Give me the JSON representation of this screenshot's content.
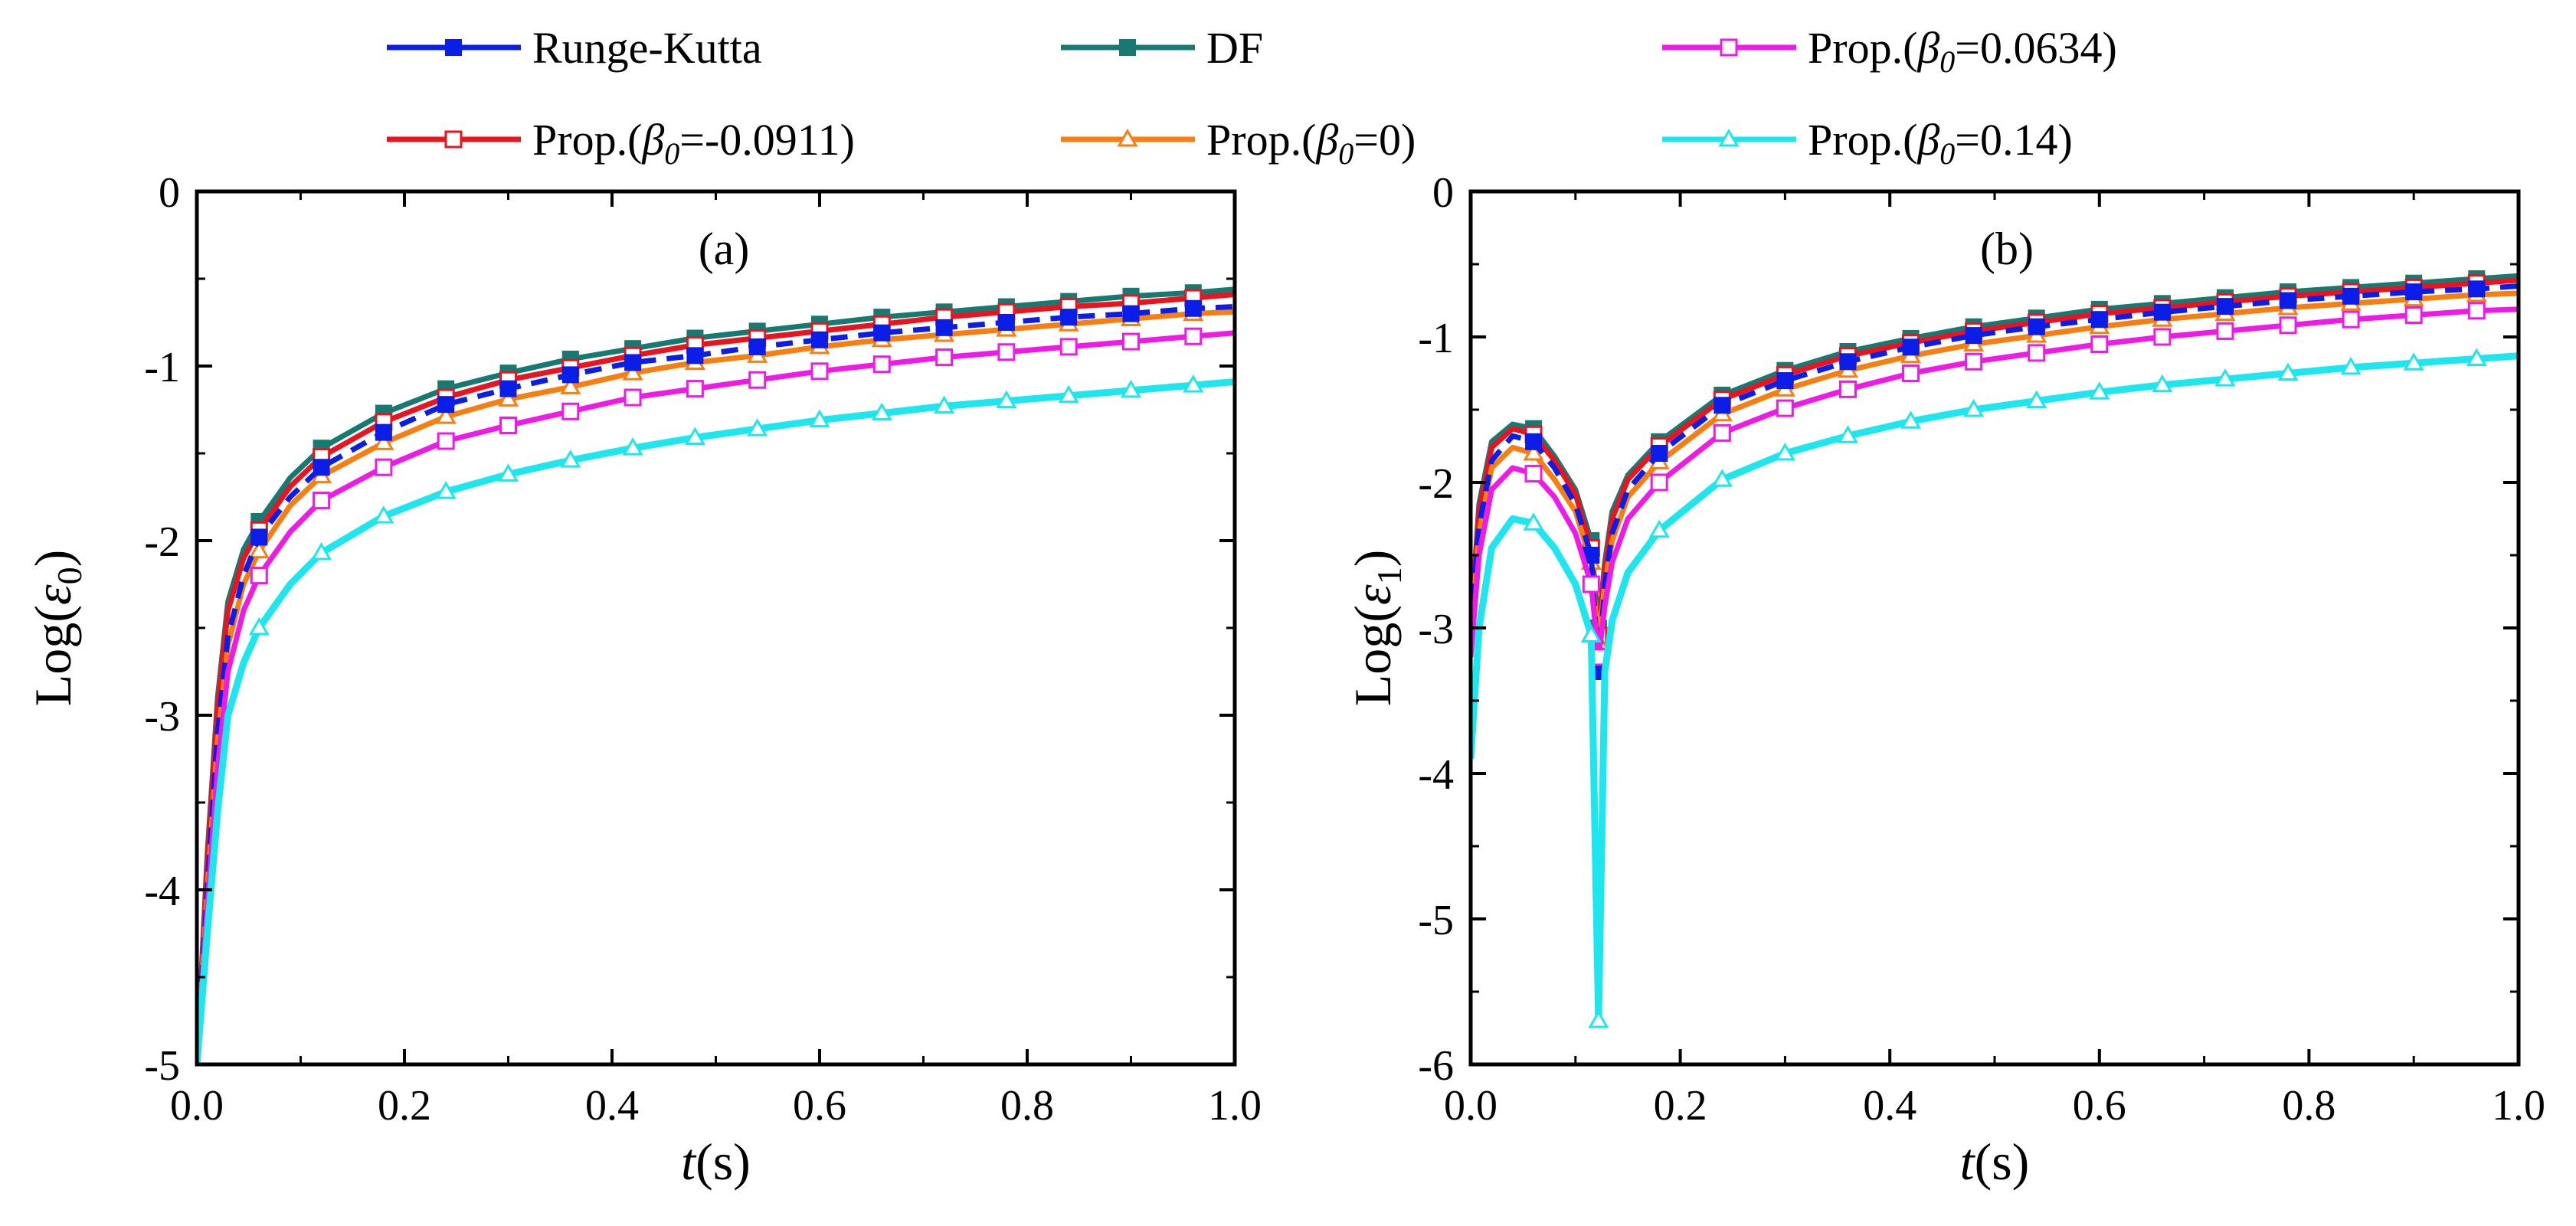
{
  "legend": [
    {
      "text": "Runge-Kutta",
      "color": "#0b1ee8",
      "marker": "square-filled"
    },
    {
      "text": "DF",
      "color": "#167a72",
      "marker": "square-filled"
    },
    {
      "text": "Prop.(β0=0.0634)",
      "prefix": "Prop.(",
      "beta": "β",
      "sub": "0",
      "suffix": "=0.0634)",
      "color": "#ee1be6",
      "marker": "square-open"
    },
    {
      "text": "Prop.(β0=-0.0911)",
      "prefix": "Prop.(",
      "beta": "β",
      "sub": "0",
      "suffix": "=-0.0911)",
      "color": "#e8141e",
      "marker": "square-open"
    },
    {
      "text": "Prop.(β0=0)",
      "prefix": "Prop.(",
      "beta": "β",
      "sub": "0",
      "suffix": "=0)",
      "color": "#f77e10",
      "marker": "triangle-open"
    },
    {
      "text": "Prop.(β0=0.14)",
      "prefix": "Prop.(",
      "beta": "β",
      "sub": "0",
      "suffix": "=0.14)",
      "color": "#1ee6ee",
      "marker": "triangle-open"
    }
  ],
  "chart_data": [
    {
      "type": "line",
      "panel_label": "(a)",
      "xlabel": "t(s)",
      "ylabel": "Log(ε0)",
      "xlim": [
        0,
        1
      ],
      "ylim": [
        -5,
        0
      ],
      "xticks": [
        "0.0",
        "0.2",
        "0.4",
        "0.6",
        "0.8",
        "1.0"
      ],
      "yticks": [
        "0",
        "-1",
        "-2",
        "-3",
        "-4",
        "-5"
      ],
      "x": [
        0.0,
        0.01,
        0.02,
        0.03,
        0.045,
        0.06,
        0.09,
        0.12,
        0.18,
        0.24,
        0.3,
        0.36,
        0.42,
        0.48,
        0.54,
        0.6,
        0.66,
        0.72,
        0.78,
        0.84,
        0.9,
        0.96,
        1.0
      ],
      "series": [
        {
          "name": "Runge-Kutta",
          "values": [
            -5.0,
            -4.0,
            -3.1,
            -2.55,
            -2.2,
            -1.98,
            -1.75,
            -1.58,
            -1.38,
            -1.22,
            -1.13,
            -1.05,
            -0.98,
            -0.94,
            -0.89,
            -0.85,
            -0.81,
            -0.78,
            -0.75,
            -0.72,
            -0.7,
            -0.67,
            -0.66
          ]
        },
        {
          "name": "DF",
          "values": [
            -5.0,
            -3.8,
            -2.9,
            -2.35,
            -2.05,
            -1.89,
            -1.64,
            -1.47,
            -1.27,
            -1.13,
            -1.04,
            -0.96,
            -0.9,
            -0.84,
            -0.8,
            -0.76,
            -0.72,
            -0.69,
            -0.66,
            -0.63,
            -0.6,
            -0.58,
            -0.56
          ]
        },
        {
          "name": "Prop.(β0=0.0634)",
          "values": [
            -5.0,
            -4.1,
            -3.3,
            -2.75,
            -2.4,
            -2.2,
            -1.95,
            -1.77,
            -1.58,
            -1.43,
            -1.34,
            -1.26,
            -1.18,
            -1.13,
            -1.08,
            -1.03,
            -0.99,
            -0.95,
            -0.92,
            -0.89,
            -0.86,
            -0.83,
            -0.81
          ]
        },
        {
          "name": "Prop.(β0=-0.0911)",
          "values": [
            -5.0,
            -3.85,
            -2.95,
            -2.4,
            -2.1,
            -1.94,
            -1.69,
            -1.52,
            -1.32,
            -1.18,
            -1.08,
            -1.01,
            -0.94,
            -0.88,
            -0.84,
            -0.8,
            -0.76,
            -0.72,
            -0.69,
            -0.66,
            -0.64,
            -0.61,
            -0.59
          ]
        },
        {
          "name": "Prop.(β0=0)",
          "values": [
            -5.0,
            -4.0,
            -3.15,
            -2.6,
            -2.25,
            -2.06,
            -1.8,
            -1.63,
            -1.44,
            -1.29,
            -1.19,
            -1.12,
            -1.04,
            -0.98,
            -0.94,
            -0.89,
            -0.85,
            -0.82,
            -0.79,
            -0.76,
            -0.73,
            -0.7,
            -0.69
          ]
        },
        {
          "name": "Prop.(β0=0.14)",
          "values": [
            -5.0,
            -4.25,
            -3.55,
            -3.0,
            -2.7,
            -2.5,
            -2.25,
            -2.07,
            -1.86,
            -1.72,
            -1.62,
            -1.54,
            -1.47,
            -1.41,
            -1.36,
            -1.31,
            -1.27,
            -1.23,
            -1.2,
            -1.17,
            -1.14,
            -1.11,
            -1.09
          ]
        }
      ]
    },
    {
      "type": "line",
      "panel_label": "(b)",
      "xlabel": "t(s)",
      "ylabel": "Log(ε1)",
      "xlim": [
        0,
        1
      ],
      "ylim": [
        -6,
        0
      ],
      "xticks": [
        "0.0",
        "0.2",
        "0.4",
        "0.6",
        "0.8",
        "1.0"
      ],
      "yticks": [
        "0",
        "-1",
        "-2",
        "-3",
        "-4",
        "-5",
        "-6"
      ],
      "x": [
        0.0,
        0.008,
        0.02,
        0.04,
        0.06,
        0.08,
        0.1,
        0.115,
        0.122,
        0.128,
        0.135,
        0.15,
        0.18,
        0.24,
        0.3,
        0.36,
        0.42,
        0.48,
        0.54,
        0.6,
        0.66,
        0.72,
        0.78,
        0.84,
        0.9,
        0.96,
        1.0
      ],
      "series": [
        {
          "name": "Runge-Kutta",
          "values": [
            -3.0,
            -2.3,
            -1.85,
            -1.68,
            -1.72,
            -1.9,
            -2.15,
            -2.5,
            -3.3,
            -2.7,
            -2.35,
            -2.05,
            -1.8,
            -1.47,
            -1.3,
            -1.17,
            -1.07,
            -0.99,
            -0.93,
            -0.88,
            -0.83,
            -0.79,
            -0.75,
            -0.72,
            -0.69,
            -0.67,
            -0.65
          ]
        },
        {
          "name": "DF",
          "values": [
            -3.0,
            -2.15,
            -1.72,
            -1.6,
            -1.63,
            -1.82,
            -2.05,
            -2.4,
            -3.0,
            -2.55,
            -2.2,
            -1.95,
            -1.72,
            -1.4,
            -1.23,
            -1.1,
            -1.01,
            -0.93,
            -0.87,
            -0.81,
            -0.77,
            -0.73,
            -0.69,
            -0.66,
            -0.63,
            -0.6,
            -0.58
          ]
        },
        {
          "name": "Prop.(β0=0.0634)",
          "values": [
            -3.2,
            -2.5,
            -2.05,
            -1.9,
            -1.94,
            -2.1,
            -2.35,
            -2.7,
            -3.2,
            -2.85,
            -2.55,
            -2.25,
            -2.0,
            -1.66,
            -1.49,
            -1.36,
            -1.25,
            -1.17,
            -1.11,
            -1.05,
            -1.0,
            -0.96,
            -0.92,
            -0.88,
            -0.85,
            -0.82,
            -0.81
          ]
        },
        {
          "name": "Prop.(β0=-0.0911)",
          "values": [
            -3.0,
            -2.2,
            -1.76,
            -1.63,
            -1.67,
            -1.85,
            -2.08,
            -2.45,
            -3.05,
            -2.6,
            -2.25,
            -1.98,
            -1.75,
            -1.43,
            -1.26,
            -1.13,
            -1.04,
            -0.96,
            -0.9,
            -0.84,
            -0.8,
            -0.76,
            -0.72,
            -0.69,
            -0.66,
            -0.63,
            -0.61
          ]
        },
        {
          "name": "Prop.(β0=0)",
          "values": [
            -3.1,
            -2.35,
            -1.9,
            -1.76,
            -1.8,
            -1.98,
            -2.2,
            -2.55,
            -3.1,
            -2.7,
            -2.4,
            -2.1,
            -1.86,
            -1.53,
            -1.36,
            -1.23,
            -1.13,
            -1.05,
            -0.99,
            -0.93,
            -0.88,
            -0.84,
            -0.8,
            -0.77,
            -0.74,
            -0.71,
            -0.7
          ]
        },
        {
          "name": "Prop.(β0=0.14)",
          "values": [
            -3.9,
            -3.0,
            -2.45,
            -2.25,
            -2.28,
            -2.45,
            -2.7,
            -3.05,
            -5.7,
            -3.3,
            -2.95,
            -2.62,
            -2.33,
            -1.98,
            -1.8,
            -1.68,
            -1.58,
            -1.5,
            -1.44,
            -1.38,
            -1.33,
            -1.29,
            -1.25,
            -1.21,
            -1.18,
            -1.15,
            -1.13
          ]
        }
      ]
    }
  ]
}
